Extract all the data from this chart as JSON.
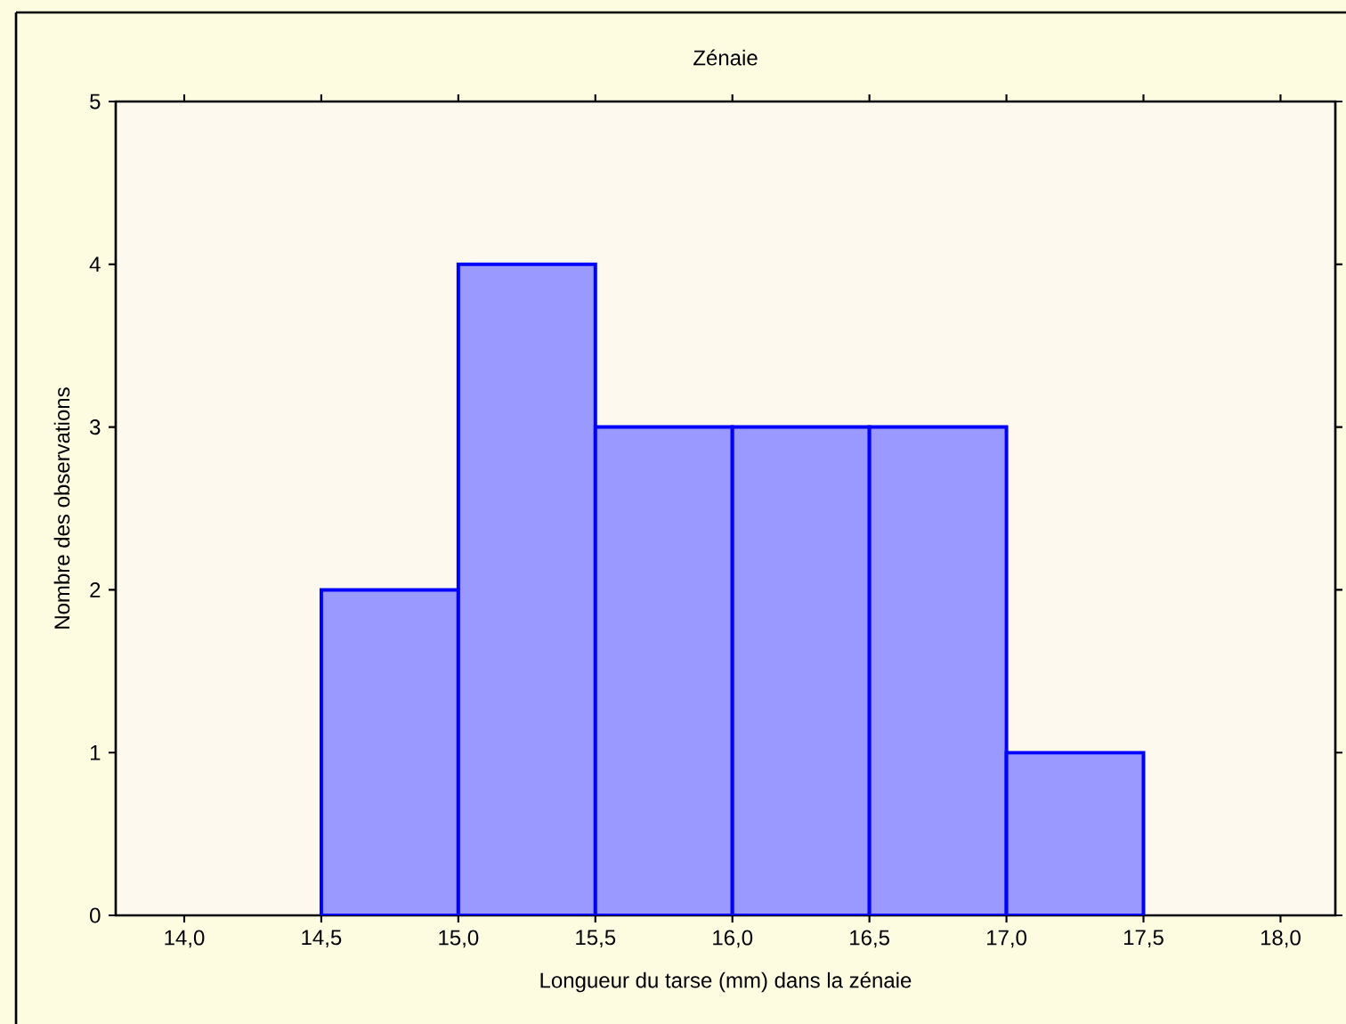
{
  "chart_data": {
    "type": "histogram",
    "title": "Zénaie",
    "xlabel": "Longueur du tarse (mm) dans la zénaie",
    "ylabel": "Nombre des observations",
    "bins": [
      14.5,
      15.0,
      15.5,
      16.0,
      16.5,
      17.0,
      17.5
    ],
    "values": [
      2,
      4,
      3,
      3,
      3,
      1
    ],
    "color": "#0000ff",
    "xlim": [
      13.75,
      18.2
    ],
    "ylim": [
      0,
      5
    ],
    "xticks": [
      {
        "value": 14.0,
        "label": "14,0"
      },
      {
        "value": 14.5,
        "label": "14,5"
      },
      {
        "value": 15.0,
        "label": "15,0"
      },
      {
        "value": 15.5,
        "label": "15,5"
      },
      {
        "value": 16.0,
        "label": "16,0"
      },
      {
        "value": 16.5,
        "label": "16,5"
      },
      {
        "value": 17.0,
        "label": "17,0"
      },
      {
        "value": 17.5,
        "label": "17,5"
      },
      {
        "value": 18.0,
        "label": "18,0"
      }
    ],
    "yticks": [
      0,
      1,
      2,
      3,
      4,
      5
    ]
  }
}
